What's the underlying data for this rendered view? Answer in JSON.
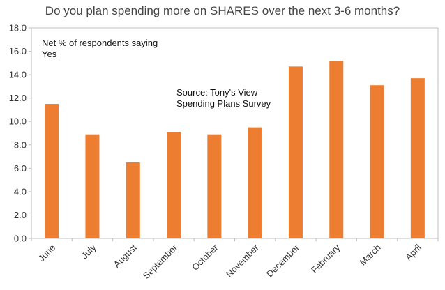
{
  "chart_data": {
    "type": "bar",
    "title": "Do you plan spending more on SHARES over the next 3-6 months?",
    "categories": [
      "June",
      "July",
      "August",
      "September",
      "October",
      "November",
      "December",
      "February",
      "March",
      "April"
    ],
    "values": [
      11.5,
      8.9,
      6.5,
      9.1,
      8.9,
      9.5,
      14.7,
      15.2,
      13.1,
      13.7
    ],
    "ylim": [
      0,
      18
    ],
    "ytick_step": 2,
    "ytick_labels": [
      "0.0",
      "2.0",
      "4.0",
      "6.0",
      "8.0",
      "10.0",
      "12.0",
      "14.0",
      "16.0",
      "18.0"
    ],
    "grid": false,
    "bar_color": "#ED7D31",
    "annotations": {
      "respondents_line1": "Net % of respondents saying",
      "respondents_line2": "Yes",
      "source_line1": "Source: Tony's View",
      "source_line2": "Spending Plans Survey"
    }
  }
}
